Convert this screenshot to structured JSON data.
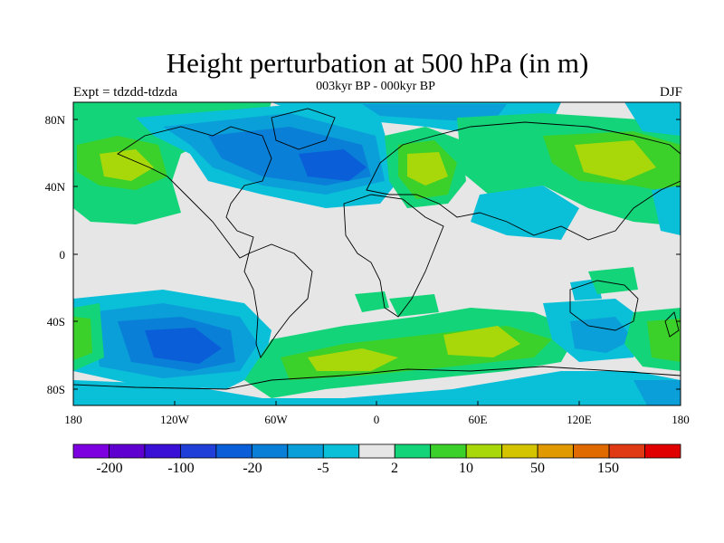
{
  "title": "Height perturbation at 500 hPa (in m)",
  "subtitle": "003kyr BP - 000kyr BP",
  "left_label": "Expt = tdzdd-tdzda",
  "right_label": "DJF",
  "lat_ticks": [
    "80N",
    "40N",
    "0",
    "40S",
    "80S"
  ],
  "lon_ticks": [
    "180",
    "120W",
    "60W",
    "0",
    "60E",
    "120E",
    "180"
  ],
  "colorbar": {
    "colors": [
      "#7d00e0",
      "#5f00d0",
      "#3a0fd6",
      "#1f3fd8",
      "#0a5ed8",
      "#0a7fd8",
      "#0a9fd8",
      "#0abfd8",
      "#e6e6e6",
      "#14d47a",
      "#3cd02a",
      "#a8d80a",
      "#d4c400",
      "#e09a00",
      "#e06a00",
      "#e03a14",
      "#e00000"
    ],
    "labels": [
      "-200",
      "-100",
      "-20",
      "-5",
      "2",
      "10",
      "50",
      "150"
    ]
  },
  "map": {
    "background_color": "#e6e6e6",
    "levels": {
      "neutral": "#e6e6e6",
      "neg_weak": "#0abfd8",
      "neg_mid": "#0a9fd8",
      "neg_strong": "#0a7fd8",
      "neg_stronger": "#0a5ed8",
      "pos_weak": "#14d47a",
      "pos_mid": "#3cd02a",
      "pos_strong": "#a8d80a"
    }
  }
}
